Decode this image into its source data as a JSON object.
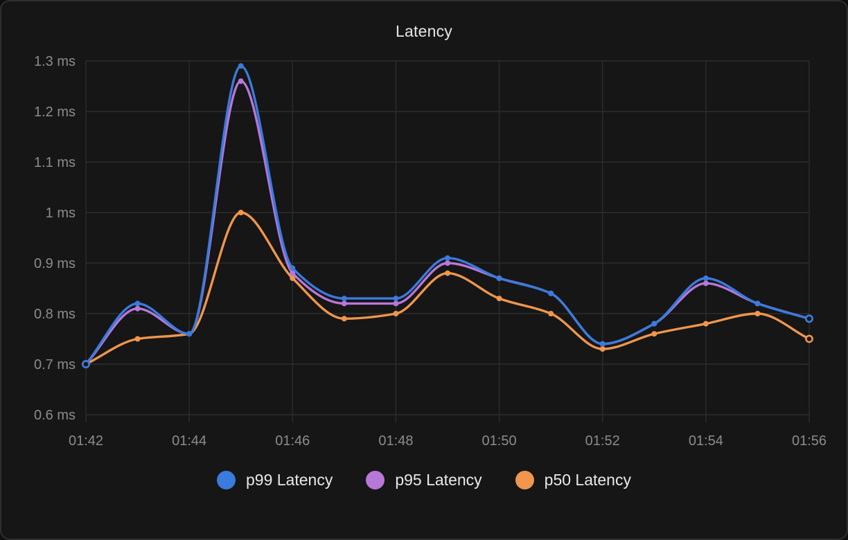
{
  "panel": {
    "title": "Latency"
  },
  "colors": {
    "panel_bg": "#161616",
    "panel_border": "#2f2f2f",
    "grid": "#2d2d2d",
    "axis_text": "#8c8c8c",
    "title_text": "#e6e6e6",
    "legend_text": "#e9e9e9",
    "p99": "#3a7bdd",
    "p95": "#b877d9",
    "p50": "#f0964d"
  },
  "chart_data": {
    "type": "line",
    "title": "Latency",
    "x": [
      "01:42",
      "01:43",
      "01:44",
      "01:45",
      "01:46",
      "01:47",
      "01:48",
      "01:49",
      "01:50",
      "01:51",
      "01:52",
      "01:53",
      "01:54",
      "01:55",
      "01:56"
    ],
    "x_tick_labels": [
      "01:42",
      "01:44",
      "01:46",
      "01:48",
      "01:50",
      "01:52",
      "01:54",
      "01:56"
    ],
    "y_tick_labels": [
      "0.6 ms",
      "0.7 ms",
      "0.8 ms",
      "0.9 ms",
      "1 ms",
      "1.1 ms",
      "1.2 ms",
      "1.3 ms"
    ],
    "ylim": [
      0.6,
      1.3
    ],
    "unit": "ms",
    "grid": true,
    "curve": "monotone",
    "legend_position": "bottom",
    "series": [
      {
        "name": "p99 Latency",
        "color": "#3a7bdd",
        "values": [
          0.7,
          0.82,
          0.76,
          1.29,
          0.89,
          0.83,
          0.83,
          0.91,
          0.87,
          0.84,
          0.74,
          0.78,
          0.87,
          0.82,
          0.79
        ]
      },
      {
        "name": "p95 Latency",
        "color": "#b877d9",
        "values": [
          0.7,
          0.81,
          0.76,
          1.26,
          0.88,
          0.82,
          0.82,
          0.9,
          0.87,
          0.84,
          0.74,
          0.78,
          0.86,
          0.82,
          0.79
        ]
      },
      {
        "name": "p50 Latency",
        "color": "#f0964d",
        "values": [
          0.7,
          0.75,
          0.76,
          1.0,
          0.87,
          0.79,
          0.8,
          0.88,
          0.83,
          0.8,
          0.73,
          0.76,
          0.78,
          0.8,
          0.75
        ]
      }
    ]
  }
}
